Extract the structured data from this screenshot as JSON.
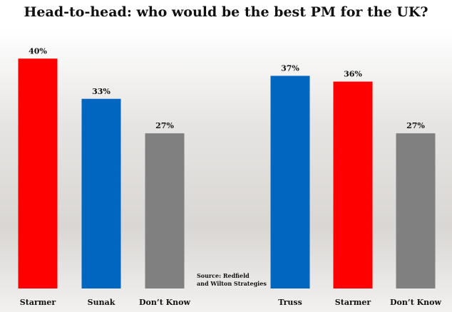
{
  "chart_data": {
    "type": "bar",
    "title": "Head-to-head: who would be the best PM for the UK?",
    "categories": [
      "Starmer",
      "Sunak",
      "Don’t Know",
      "Truss",
      "Starmer",
      "Don’t Know"
    ],
    "values": [
      40,
      33,
      27,
      37,
      36,
      27
    ],
    "value_labels": [
      "40%",
      "33%",
      "27%",
      "37%",
      "36%",
      "27%"
    ],
    "colors": [
      "#ff0000",
      "#0066c0",
      "#808080",
      "#0066c0",
      "#ff0000",
      "#808080"
    ],
    "ylim": [
      0,
      44
    ],
    "source": [
      "Source: Redfield",
      "and Wilton Strategies"
    ]
  }
}
